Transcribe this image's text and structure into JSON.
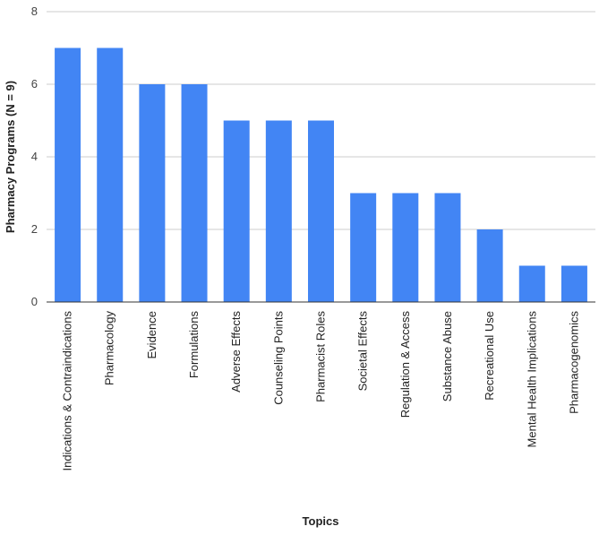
{
  "chart_data": {
    "type": "bar",
    "title": "",
    "xlabel": "Topics",
    "ylabel": "Pharmacy Programs  (N = 9)",
    "categories": [
      "Indications & Contraindications",
      "Pharmacology",
      "Evidence",
      "Formulations",
      "Adverse Effects",
      "Counseling Points",
      "Pharmacist Roles",
      "Societal Effects",
      "Regulation & Access",
      "Substance Abuse",
      "Recreational Use",
      "Mental Health Implications",
      "Pharmacogenomics"
    ],
    "values": [
      7,
      7,
      6,
      6,
      5,
      5,
      5,
      3,
      3,
      3,
      2,
      1,
      1
    ],
    "ylim": [
      0,
      8
    ],
    "yticks": [
      0,
      2,
      4,
      6,
      8
    ],
    "grid": true,
    "legend": "none",
    "colors": {
      "bar": "#4285f4",
      "grid": "#cccccc",
      "baseline": "#333333"
    }
  }
}
